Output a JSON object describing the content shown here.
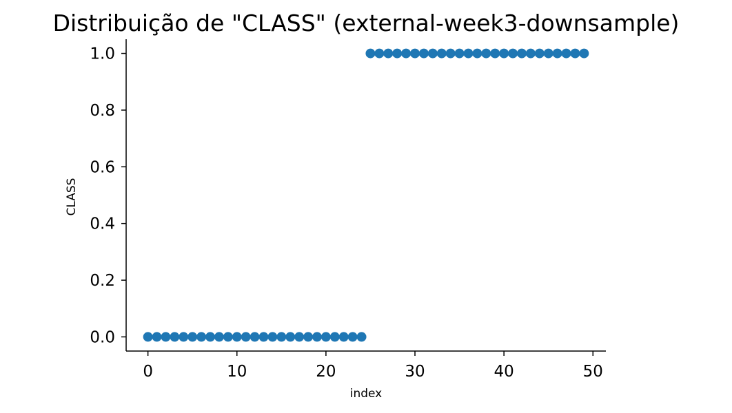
{
  "chart_data": {
    "type": "scatter",
    "title": "Distribuição de \"CLASS\" (external-week3-downsample)",
    "xlabel": "index",
    "ylabel": "CLASS",
    "xlim": [
      -2.45,
      51.45
    ],
    "ylim": [
      -0.05,
      1.05
    ],
    "x_ticks": [
      0,
      10,
      20,
      30,
      40,
      50
    ],
    "y_ticks": [
      0.0,
      0.2,
      0.4,
      0.6,
      0.8,
      1.0
    ],
    "x_tick_labels": [
      "0",
      "10",
      "20",
      "30",
      "40",
      "50"
    ],
    "y_tick_labels": [
      "0.0",
      "0.2",
      "0.4",
      "0.6",
      "0.8",
      "1.0"
    ],
    "grid": false,
    "legend": "none",
    "spines": [
      "left",
      "bottom"
    ],
    "marker_color": "#1f77b4",
    "x": [
      0,
      1,
      2,
      3,
      4,
      5,
      6,
      7,
      8,
      9,
      10,
      11,
      12,
      13,
      14,
      15,
      16,
      17,
      18,
      19,
      20,
      21,
      22,
      23,
      24,
      25,
      26,
      27,
      28,
      29,
      30,
      31,
      32,
      33,
      34,
      35,
      36,
      37,
      38,
      39,
      40,
      41,
      42,
      43,
      44,
      45,
      46,
      47,
      48,
      49
    ],
    "y": [
      0,
      0,
      0,
      0,
      0,
      0,
      0,
      0,
      0,
      0,
      0,
      0,
      0,
      0,
      0,
      0,
      0,
      0,
      0,
      0,
      0,
      0,
      0,
      0,
      0,
      1,
      1,
      1,
      1,
      1,
      1,
      1,
      1,
      1,
      1,
      1,
      1,
      1,
      1,
      1,
      1,
      1,
      1,
      1,
      1,
      1,
      1,
      1,
      1,
      1
    ]
  }
}
